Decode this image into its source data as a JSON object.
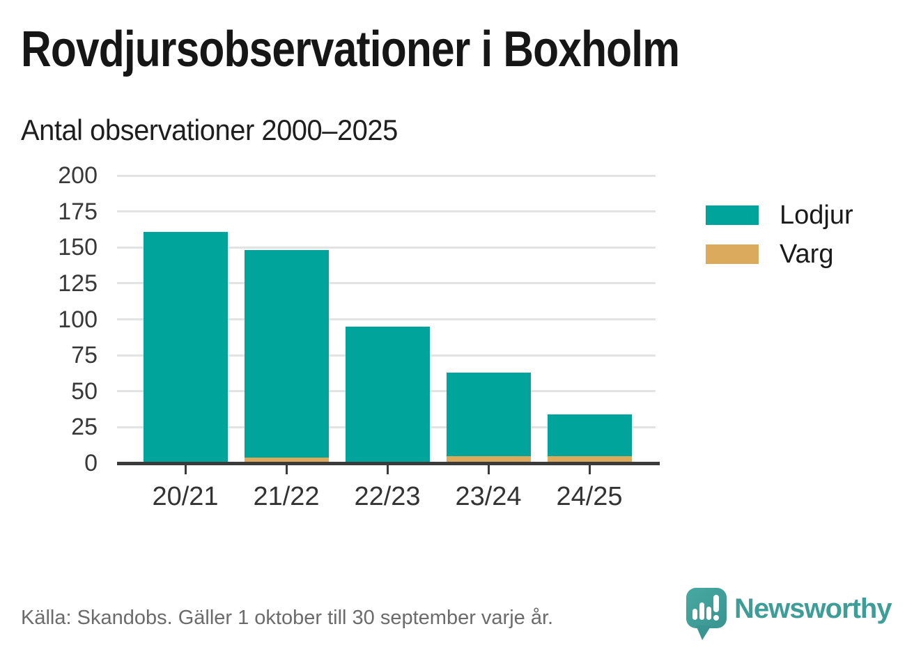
{
  "header": {
    "title": "Rovdjursobservationer i Boxholm",
    "subtitle": "Antal observationer 2000–2025"
  },
  "chart_data": {
    "type": "bar",
    "stacked": true,
    "title": "Rovdjursobservationer i Boxholm",
    "subtitle": "Antal observationer 2000–2025",
    "categories": [
      "20/21",
      "21/22",
      "22/23",
      "23/24",
      "24/25"
    ],
    "series": [
      {
        "name": "Lodjur",
        "color": "#00a49b",
        "values": [
          161,
          144,
          95,
          58,
          29
        ]
      },
      {
        "name": "Varg",
        "color": "#dbaa5c",
        "values": [
          0,
          4,
          0,
          5,
          5
        ]
      }
    ],
    "stack_bottom_to_top": [
      "Varg",
      "Lodjur"
    ],
    "totals": [
      161,
      148,
      95,
      63,
      34
    ],
    "ylim": [
      0,
      200
    ],
    "ytick_interval": 25,
    "ytick_labels": [
      "0",
      "25",
      "50",
      "75",
      "100",
      "125",
      "150",
      "175",
      "200"
    ],
    "xlabel": "",
    "ylabel": "",
    "grid": "horizontal",
    "grid_color": "#e3e3e3",
    "axis_color": "#3b3b3b",
    "legend_position": "right"
  },
  "footer": {
    "source": "Källa: Skandobs. Gäller 1 oktober till 30 september varje år.",
    "brand": "Newsworthy",
    "brand_color": "#3f9d98"
  }
}
